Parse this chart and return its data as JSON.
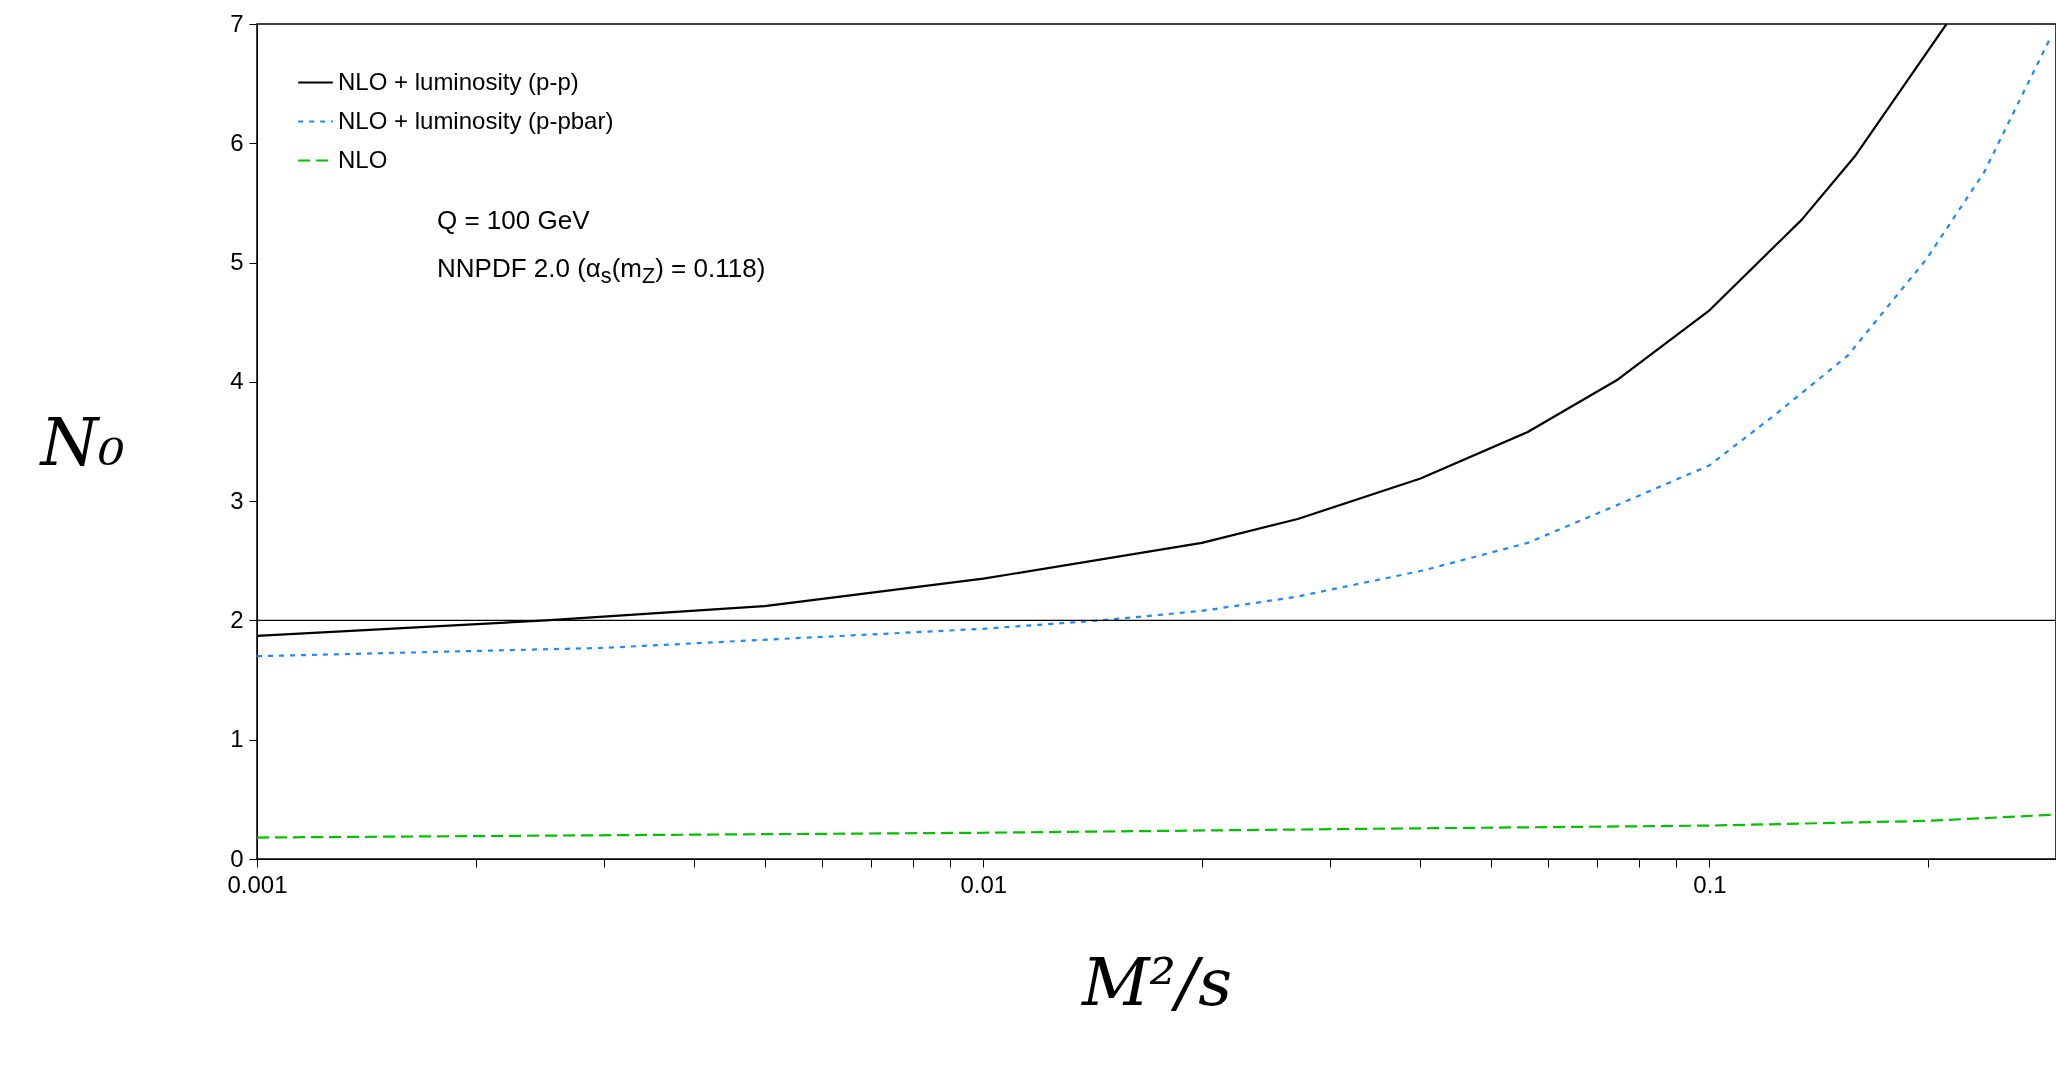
{
  "chart_data": {
    "type": "line",
    "xlabel": "M²/s",
    "ylabel": "N₀",
    "log": "x",
    "legend": "top left",
    "grid": false,
    "marker": "none",
    "xlim": [
      0.001,
      0.3
    ],
    "ylim": [
      0,
      7
    ],
    "yticks": [
      0,
      1,
      2,
      3,
      4,
      5,
      6,
      7
    ],
    "xticks": [
      0.001,
      {
        "value": 0.002,
        "label": null
      },
      {
        "value": 0.003,
        "label": null
      },
      {
        "value": 0.004,
        "label": null
      },
      {
        "value": 0.005,
        "label": null
      },
      {
        "value": 0.006,
        "label": null
      },
      {
        "value": 0.007,
        "label": null
      },
      {
        "value": 0.008,
        "label": null
      },
      {
        "value": 0.009,
        "label": null
      },
      0.01,
      {
        "value": 0.02,
        "label": null
      },
      {
        "value": 0.03,
        "label": null
      },
      {
        "value": 0.04,
        "label": null
      },
      {
        "value": 0.05,
        "label": null
      },
      {
        "value": 0.06,
        "label": null
      },
      {
        "value": 0.07,
        "label": null
      },
      {
        "value": 0.08,
        "label": null
      },
      {
        "value": 0.09,
        "label": null
      },
      0.1,
      {
        "value": 0.2,
        "label": null
      }
    ],
    "series": [
      {
        "name": "NLO + luminosity (p-p)",
        "color": "#000000",
        "line_style": "solid",
        "x": [
          0.001,
          0.0025,
          0.005,
          0.01,
          0.02,
          0.0271,
          0.04,
          0.0562,
          0.0748,
          0.1,
          0.134,
          0.159,
          0.185,
          0.212
        ],
        "values": [
          1.87,
          2.0,
          2.12,
          2.35,
          2.65,
          2.85,
          3.19,
          3.58,
          4.02,
          4.6,
          5.36,
          5.9,
          6.48,
          7.0
        ]
      },
      {
        "name": "NLO + luminosity (p-pbar)",
        "color": "#1e88ff",
        "line_style": "dotted",
        "x": [
          0.001,
          0.003,
          0.01,
          0.0145,
          0.02,
          0.0271,
          0.0404,
          0.0562,
          0.0748,
          0.1,
          0.124,
          0.155,
          0.199,
          0.239,
          0.295
        ],
        "values": [
          1.7,
          1.77,
          1.93,
          2.0,
          2.08,
          2.2,
          2.42,
          2.65,
          2.97,
          3.3,
          3.74,
          4.22,
          5.03,
          5.76,
          6.89
        ]
      },
      {
        "name": "NLO",
        "color": "#00c000",
        "line_style": "dashed",
        "x": [
          0.001,
          0.01,
          0.03,
          0.1,
          0.2,
          0.295
        ],
        "values": [
          0.18,
          0.22,
          0.25,
          0.28,
          0.32,
          0.37
        ]
      }
    ],
    "ref_lines": [
      {
        "axis": "y",
        "value": 2,
        "color": "#000000"
      }
    ],
    "annotations": [
      "Q = 100 GeV",
      "NNPDF 2.0  (α$_{s}$(m$_{Z}$) = 0.118)"
    ]
  }
}
